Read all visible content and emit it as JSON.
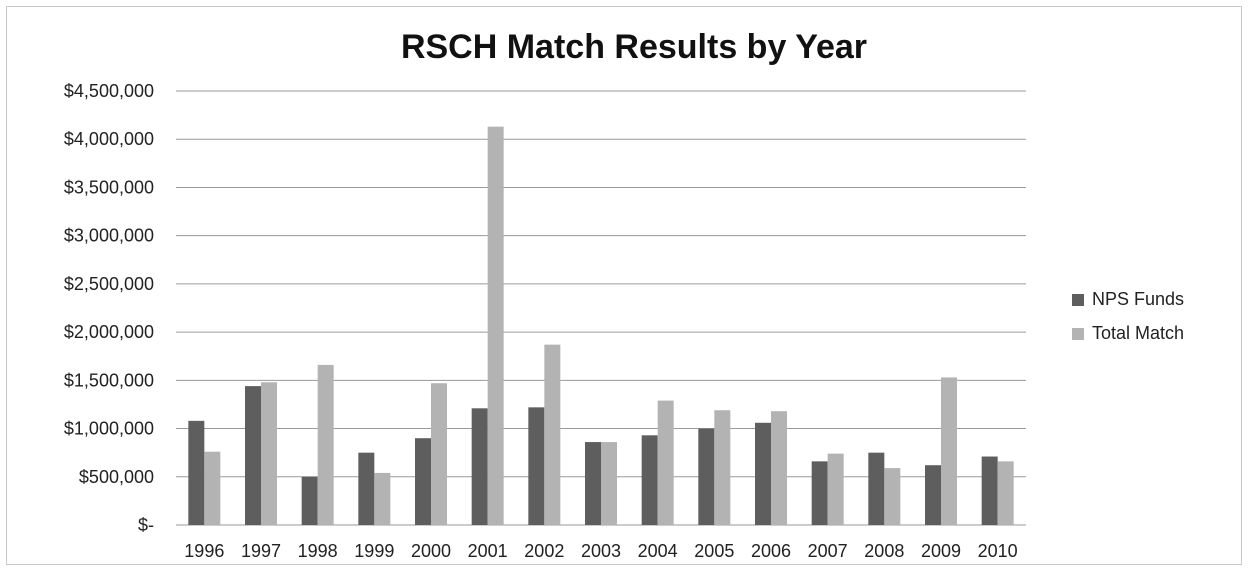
{
  "chart_data": {
    "type": "bar",
    "title": "RSCH Match Results by Year",
    "xlabel": "",
    "ylabel": "",
    "categories": [
      "1996",
      "1997",
      "1998",
      "1999",
      "2000",
      "2001",
      "2002",
      "2003",
      "2004",
      "2005",
      "2006",
      "2007",
      "2008",
      "2009",
      "2010"
    ],
    "series": [
      {
        "name": "NPS Funds",
        "color": "#5e5e5e",
        "values": [
          1080000,
          1440000,
          500000,
          750000,
          900000,
          1210000,
          1220000,
          860000,
          930000,
          1000000,
          1060000,
          660000,
          750000,
          620000,
          710000
        ]
      },
      {
        "name": "Total Match",
        "color": "#b3b3b3",
        "values": [
          760000,
          1480000,
          1660000,
          540000,
          1470000,
          4130000,
          1870000,
          860000,
          1290000,
          1190000,
          1180000,
          740000,
          590000,
          1530000,
          660000
        ]
      }
    ],
    "ylim": [
      0,
      4500000
    ],
    "yticks": [
      0,
      500000,
      1000000,
      1500000,
      2000000,
      2500000,
      3000000,
      3500000,
      4000000,
      4500000
    ],
    "ytick_labels": [
      "$-",
      "$500,000",
      "$1,000,000",
      "$1,500,000",
      "$2,000,000",
      "$2,500,000",
      "$3,000,000",
      "$3,500,000",
      "$4,000,000",
      "$4,500,000"
    ],
    "grid": true,
    "gridline_color": "#9a9a9a",
    "legend_position": "right"
  }
}
